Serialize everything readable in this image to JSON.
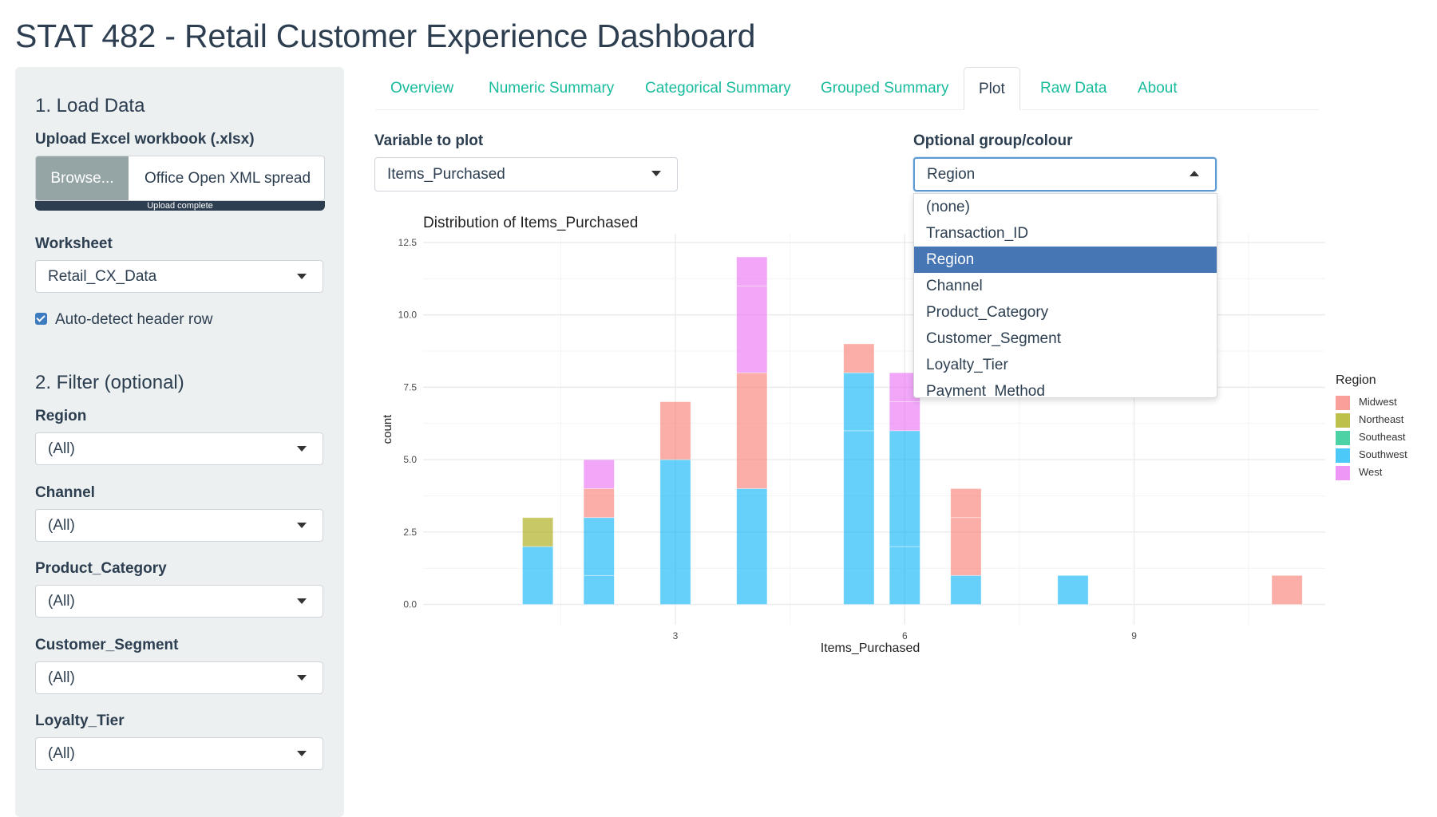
{
  "app": {
    "title": "STAT 482 - Retail Customer Experience Dashboard"
  },
  "sidebar": {
    "load_heading": "1. Load Data",
    "upload_label": "Upload Excel workbook (.xlsx)",
    "browse_label": "Browse...",
    "file_name": "Office Open XML spread",
    "upload_status": "Upload complete",
    "upload_progress": 1.0,
    "worksheet_label": "Worksheet",
    "worksheet_value": "Retail_CX_Data",
    "header_checkbox_label": "Auto-detect header row",
    "header_checkbox_checked": true,
    "filter_heading": "2. Filter (optional)",
    "filters": [
      {
        "label": "Region",
        "value": "(All)"
      },
      {
        "label": "Channel",
        "value": "(All)"
      },
      {
        "label": "Product_Category",
        "value": "(All)"
      },
      {
        "label": "Customer_Segment",
        "value": "(All)"
      },
      {
        "label": "Loyalty_Tier",
        "value": "(All)"
      }
    ]
  },
  "tabs": [
    {
      "label": "Overview",
      "active": false
    },
    {
      "label": "Numeric Summary",
      "active": false
    },
    {
      "label": "Categorical Summary",
      "active": false
    },
    {
      "label": "Grouped Summary",
      "active": false
    },
    {
      "label": "Plot",
      "active": true
    },
    {
      "label": "Raw Data",
      "active": false
    },
    {
      "label": "About",
      "active": false
    }
  ],
  "controls": {
    "variable_label": "Variable to plot",
    "variable_value": "Items_Purchased",
    "group_label": "Optional group/colour",
    "group_value": "Region",
    "group_options": [
      "(none)",
      "Transaction_ID",
      "Region",
      "Channel",
      "Product_Category",
      "Customer_Segment",
      "Loyalty_Tier",
      "Payment_Method"
    ],
    "group_selected_index": 2
  },
  "colors": {
    "accent_tab": "#18bc9c",
    "primary": "#2c3e50",
    "selected_option": "#4776b4"
  },
  "chart_data": {
    "type": "bar",
    "subtype": "stacked histogram",
    "title": "Distribution of Items_Purchased",
    "xlabel": "Items_Purchased",
    "ylabel": "count",
    "xlim": [
      -0.3,
      11.5
    ],
    "ylim": [
      -0.7,
      12.8
    ],
    "x_ticks": [
      3,
      6,
      9
    ],
    "y_ticks": [
      0.0,
      2.5,
      5.0,
      7.5,
      10.0,
      12.5
    ],
    "y_tick_labels": [
      "0.0",
      "2.5",
      "5.0",
      "7.5",
      "10.0",
      "12.5"
    ],
    "bar_width": 0.4,
    "grid": true,
    "legend_title": "Region",
    "legend_position": "right",
    "series": [
      {
        "name": "Midwest",
        "color": "#F8766D"
      },
      {
        "name": "Northeast",
        "color": "#A3A500"
      },
      {
        "name": "Southeast",
        "color": "#00BF7D"
      },
      {
        "name": "Southwest",
        "color": "#00B0F6"
      },
      {
        "name": "West",
        "color": "#E76BF3"
      }
    ],
    "bars": [
      {
        "x": 1.2,
        "segments": [
          {
            "series": "Southwest",
            "from": 0,
            "to": 2
          },
          {
            "series": "Northeast",
            "from": 2,
            "to": 3
          }
        ]
      },
      {
        "x": 2.0,
        "segments": [
          {
            "series": "Southwest",
            "from": 0,
            "to": 1
          },
          {
            "series": "Southwest",
            "from": 1,
            "to": 3
          },
          {
            "series": "Midwest",
            "from": 3,
            "to": 4
          },
          {
            "series": "West",
            "from": 4,
            "to": 5
          }
        ]
      },
      {
        "x": 3.0,
        "segments": [
          {
            "series": "Southwest",
            "from": 0,
            "to": 5
          },
          {
            "series": "Midwest",
            "from": 5,
            "to": 7
          }
        ]
      },
      {
        "x": 4.0,
        "segments": [
          {
            "series": "Southwest",
            "from": 0,
            "to": 4
          },
          {
            "series": "Midwest",
            "from": 4,
            "to": 8
          },
          {
            "series": "West",
            "from": 8,
            "to": 11
          },
          {
            "series": "West",
            "from": 11,
            "to": 12
          }
        ]
      },
      {
        "x": 5.4,
        "segments": [
          {
            "series": "Southwest",
            "from": 0,
            "to": 6
          },
          {
            "series": "Southwest",
            "from": 6,
            "to": 8
          },
          {
            "series": "Midwest",
            "from": 8,
            "to": 9
          }
        ]
      },
      {
        "x": 6.0,
        "segments": [
          {
            "series": "Southwest",
            "from": 0,
            "to": 2
          },
          {
            "series": "Southwest",
            "from": 2,
            "to": 6
          },
          {
            "series": "West",
            "from": 6,
            "to": 7
          },
          {
            "series": "West",
            "from": 7,
            "to": 8
          }
        ]
      },
      {
        "x": 6.8,
        "segments": [
          {
            "series": "Southwest",
            "from": 0,
            "to": 1
          },
          {
            "series": "Midwest",
            "from": 1,
            "to": 3
          },
          {
            "series": "Midwest",
            "from": 3,
            "to": 4
          }
        ]
      },
      {
        "x": 8.2,
        "segments": [
          {
            "series": "Southwest",
            "from": 0,
            "to": 1
          }
        ]
      },
      {
        "x": 11.0,
        "segments": [
          {
            "series": "Midwest",
            "from": 0,
            "to": 1
          }
        ]
      }
    ]
  }
}
